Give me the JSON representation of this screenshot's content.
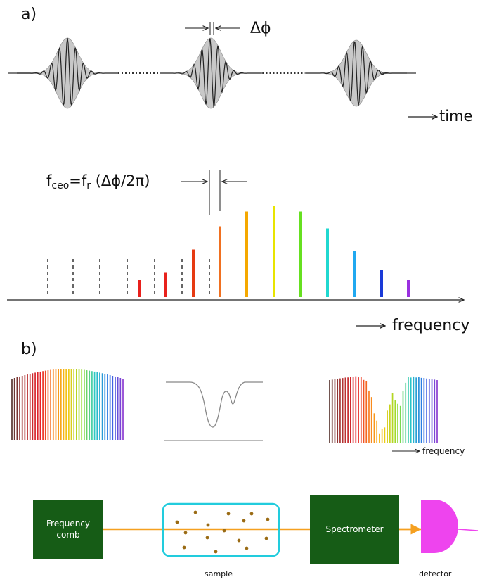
{
  "panel_a": {
    "label": "a)",
    "time_axis_label": "time",
    "phase_slip_label": "Δϕ",
    "equation": {
      "f": "f",
      "ceo_sub": "ceo",
      "eq": "=f",
      "r_sub": "r",
      "rest": " (Δϕ/2π)"
    },
    "frequency_axis_label": "frequency",
    "comb_lines_dashed": 7,
    "comb_lines": [
      {
        "color": "#e8201c",
        "height": 0.16
      },
      {
        "color": "#e8221c",
        "height": 0.23
      },
      {
        "color": "#e63a12",
        "height": 0.45
      },
      {
        "color": "#f07020",
        "height": 0.67
      },
      {
        "color": "#f5a800",
        "height": 0.81
      },
      {
        "color": "#e8e400",
        "height": 0.86
      },
      {
        "color": "#66e020",
        "height": 0.81
      },
      {
        "color": "#20d8d0",
        "height": 0.65
      },
      {
        "color": "#20a8f0",
        "height": 0.44
      },
      {
        "color": "#1a3ad8",
        "height": 0.26
      },
      {
        "color": "#9a30e0",
        "height": 0.16
      }
    ]
  },
  "panel_b": {
    "label": "b)",
    "frequency_axis_label": "frequency",
    "blocks": {
      "comb": "Frequency comb",
      "spectrometer": "Spectrometer",
      "sample": "sample",
      "detector": "detector"
    },
    "colors": {
      "block": "#165c16",
      "beam": "#f5a020",
      "sample_border": "#22ccdd",
      "particles": "#9a6b14",
      "detector": "#ee44ee"
    }
  }
}
